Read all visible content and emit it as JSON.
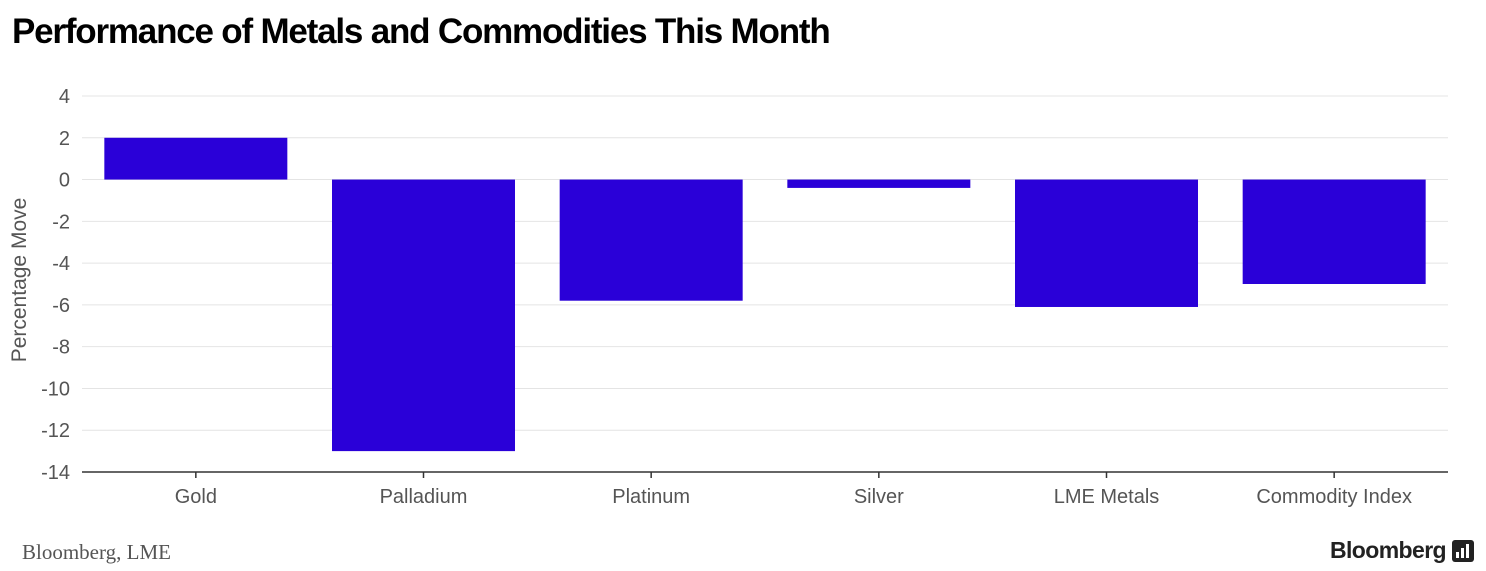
{
  "title": "Performance of Metals and Commodities This Month",
  "source": "Bloomberg, LME",
  "brand": {
    "name": "Bloomberg",
    "icon": "bloomberg-terminal-icon"
  },
  "colors": {
    "bar": "#2a00d8",
    "grid": "#e4e4e4",
    "axis": "#555555",
    "tick_text": "#555555"
  },
  "chart_data": {
    "type": "bar",
    "categories": [
      "Gold",
      "Palladium",
      "Platinum",
      "Silver",
      "LME Metals",
      "Commodity Index"
    ],
    "values": [
      2.0,
      -13.0,
      -5.8,
      -0.4,
      -6.1,
      -5.0
    ],
    "ylabel": "Percentage Move",
    "xlabel": "",
    "ylim": [
      -14,
      4
    ],
    "yticks": [
      4,
      2,
      0,
      -2,
      -4,
      -6,
      -8,
      -10,
      -12,
      -14
    ],
    "grid": true
  }
}
